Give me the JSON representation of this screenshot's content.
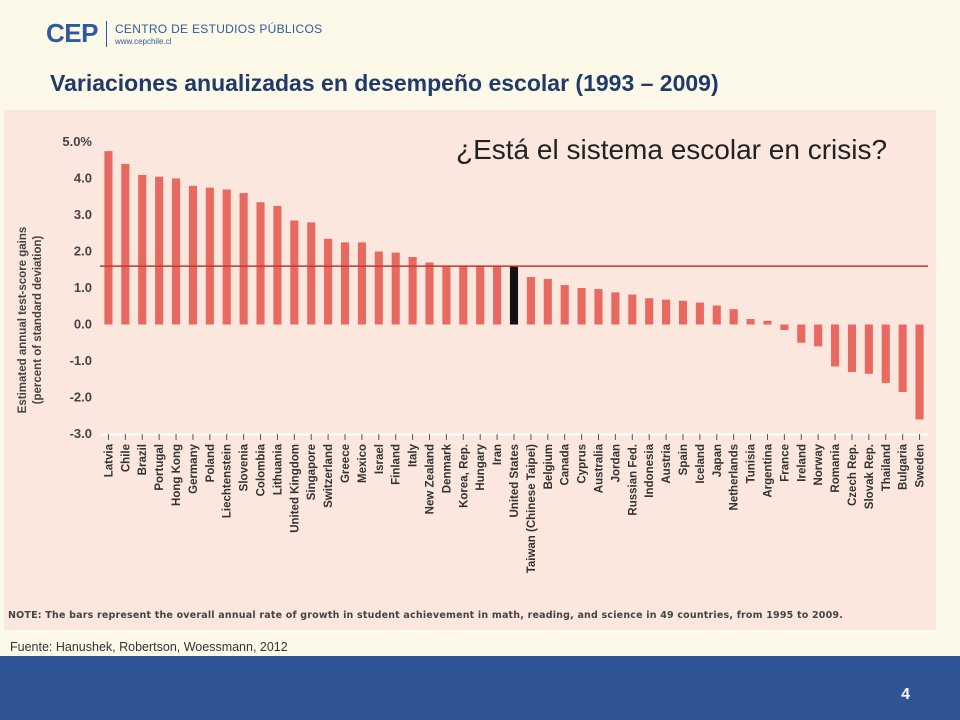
{
  "header": {
    "logo_mark": "CEP",
    "logo_name": "CENTRO DE ESTUDIOS PÚBLICOS",
    "logo_url": "www.cepchile.cl",
    "title": "Variaciones anualizadas en desempeño escolar (1993 – 2009)"
  },
  "callout": "¿Está el sistema escolar en crisis?",
  "note": "NOTE: The bars represent the overall annual rate of growth in student achievement in math, reading, and science in 49 countries, from 1995 to 2009.",
  "source": "Fuente: Hanushek, Robertson, Woessmann, 2012",
  "footer": {
    "page_number": "4"
  },
  "colors": {
    "bar": "#e8695f",
    "highlight_bar": "#111111",
    "reference_line": "#c0392b",
    "panel": "#fbe7dd",
    "footer": "#2f5597",
    "title": "#1f3a6b"
  },
  "chart_data": {
    "type": "bar",
    "ylabel": "Estimated annual test-score gains (percent of standard deviation)",
    "ylabel_lines": [
      "Estimated annual test-score gains",
      "(percent of  standard deviation)"
    ],
    "ylim": [
      -3.0,
      5.0
    ],
    "yticks": [
      "5.0%",
      "4.0",
      "3.0",
      "2.0",
      "1.0",
      "0.0",
      "-1.0",
      "-2.0",
      "-3.0"
    ],
    "reference_line": 1.6,
    "highlight": "United States",
    "categories": [
      "Latvia",
      "Chile",
      "Brazil",
      "Portugal",
      "Hong Kong",
      "Germany",
      "Poland",
      "Liechtenstein",
      "Slovenia",
      "Colombia",
      "Lithuania",
      "United Kingdom",
      "Singapore",
      "Switzerland",
      "Greece",
      "Mexico",
      "Israel",
      "Finland",
      "Italy",
      "New Zealand",
      "Denmark",
      "Korea, Rep.",
      "Hungary",
      "Iran",
      "United States",
      "Taiwan (Chinese Taipei)",
      "Belgium",
      "Canada",
      "Cyprus",
      "Australia",
      "Jordan",
      "Russian Fed.",
      "Indonesia",
      "Austria",
      "Spain",
      "Iceland",
      "Japan",
      "Netherlands",
      "Tunisia",
      "Argentina",
      "France",
      "Ireland",
      "Norway",
      "Romania",
      "Czech Rep.",
      "Slovak Rep.",
      "Thailand",
      "Bulgaria",
      "Sweden"
    ],
    "values": [
      4.75,
      4.4,
      4.1,
      4.05,
      4.0,
      3.8,
      3.75,
      3.7,
      3.6,
      3.35,
      3.25,
      2.85,
      2.8,
      2.35,
      2.25,
      2.25,
      2.0,
      1.97,
      1.85,
      1.7,
      1.6,
      1.6,
      1.6,
      1.6,
      1.6,
      1.3,
      1.25,
      1.08,
      1.0,
      0.97,
      0.88,
      0.82,
      0.72,
      0.68,
      0.65,
      0.6,
      0.52,
      0.42,
      0.15,
      0.1,
      -0.15,
      -0.5,
      -0.6,
      -1.15,
      -1.3,
      -1.35,
      -1.6,
      -1.85,
      -2.6
    ]
  }
}
